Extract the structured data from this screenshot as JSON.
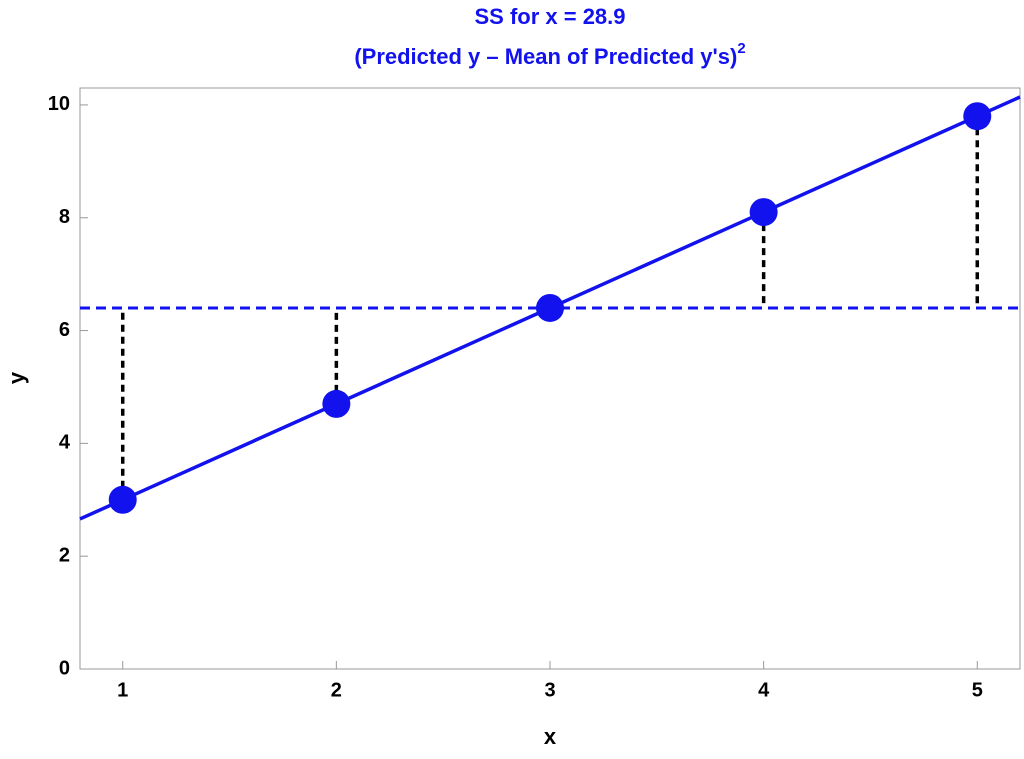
{
  "chart_data": {
    "type": "line",
    "title": "SS for x = 28.9",
    "subtitle": "(Predicted y – Mean of Predicted y's)",
    "subtitle_superscript": "2",
    "x_label": "x",
    "y_label": "y",
    "x": [
      1,
      2,
      3,
      4,
      5
    ],
    "series": [
      {
        "color": "#1212ee",
        "values": [
          3.0,
          4.7,
          6.4,
          8.1,
          9.8
        ]
      }
    ],
    "fit_line": {
      "x": [
        0.8,
        5.2
      ],
      "y": [
        2.66,
        10.14
      ]
    },
    "mean": 6.4,
    "xlim": [
      0.8,
      5.2
    ],
    "ylim": [
      0,
      10.3
    ],
    "xticks": [
      1,
      2,
      3,
      4,
      5
    ],
    "yticks": [
      0,
      2,
      4,
      6,
      8,
      10
    ]
  }
}
